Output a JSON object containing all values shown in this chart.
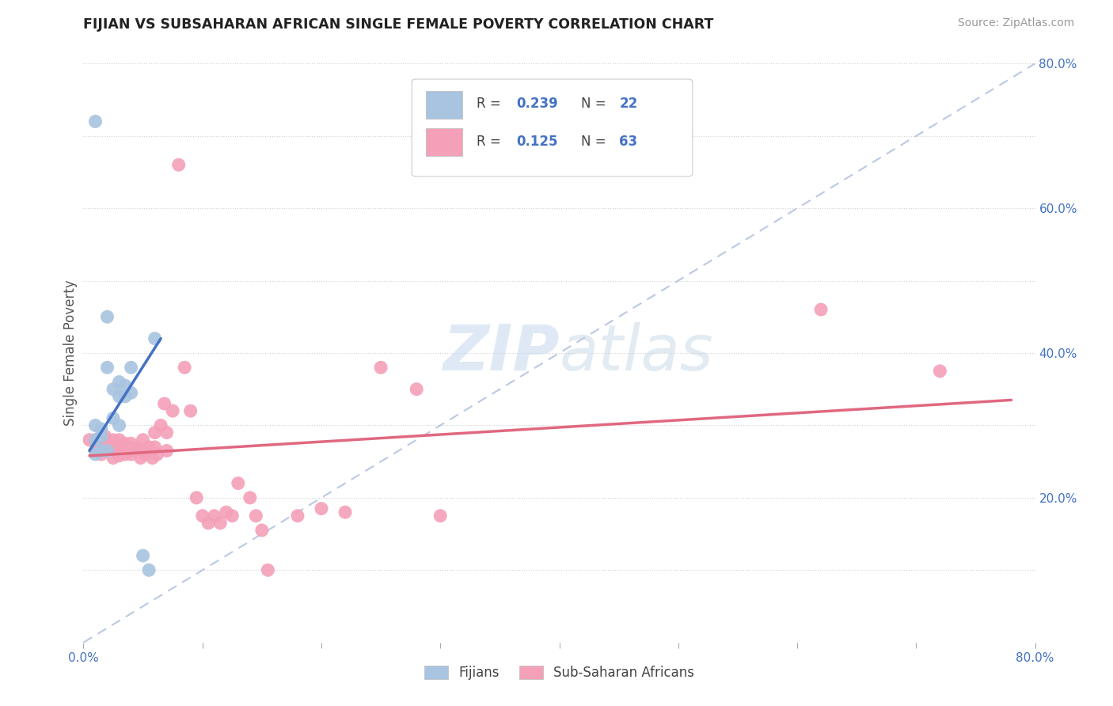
{
  "title": "FIJIAN VS SUBSAHARAN AFRICAN SINGLE FEMALE POVERTY CORRELATION CHART",
  "source": "Source: ZipAtlas.com",
  "ylabel": "Single Female Poverty",
  "xlim": [
    0,
    0.8
  ],
  "ylim": [
    0,
    0.8
  ],
  "grid_color": "#d0d0d0",
  "bg_color": "#ffffff",
  "fijian_color": "#a8c4e0",
  "fijian_line_color": "#4472c4",
  "subsaharan_color": "#f4a0b8",
  "subsaharan_line_color": "#e06880",
  "fijian_R": "0.239",
  "fijian_N": "22",
  "subsaharan_R": "0.125",
  "subsaharan_N": "63",
  "fijian_points_x": [
    0.01,
    0.01,
    0.01,
    0.015,
    0.015,
    0.015,
    0.02,
    0.02,
    0.02,
    0.025,
    0.025,
    0.03,
    0.03,
    0.03,
    0.035,
    0.035,
    0.04,
    0.04,
    0.05,
    0.055,
    0.06,
    0.01
  ],
  "fijian_points_y": [
    0.3,
    0.28,
    0.26,
    0.295,
    0.285,
    0.265,
    0.45,
    0.38,
    0.265,
    0.35,
    0.31,
    0.36,
    0.34,
    0.3,
    0.355,
    0.34,
    0.38,
    0.345,
    0.12,
    0.1,
    0.42,
    0.72
  ],
  "subsaharan_points_x": [
    0.005,
    0.01,
    0.01,
    0.012,
    0.015,
    0.015,
    0.015,
    0.018,
    0.02,
    0.02,
    0.022,
    0.025,
    0.025,
    0.025,
    0.028,
    0.03,
    0.03,
    0.03,
    0.032,
    0.035,
    0.035,
    0.038,
    0.04,
    0.04,
    0.042,
    0.045,
    0.048,
    0.05,
    0.05,
    0.052,
    0.055,
    0.058,
    0.06,
    0.06,
    0.062,
    0.065,
    0.068,
    0.07,
    0.07,
    0.075,
    0.08,
    0.085,
    0.09,
    0.095,
    0.1,
    0.105,
    0.11,
    0.115,
    0.12,
    0.125,
    0.13,
    0.14,
    0.145,
    0.15,
    0.155,
    0.18,
    0.2,
    0.22,
    0.25,
    0.28,
    0.3,
    0.62,
    0.72
  ],
  "subsaharan_points_y": [
    0.28,
    0.28,
    0.265,
    0.275,
    0.28,
    0.27,
    0.26,
    0.285,
    0.28,
    0.265,
    0.275,
    0.28,
    0.265,
    0.255,
    0.275,
    0.28,
    0.268,
    0.258,
    0.27,
    0.275,
    0.26,
    0.27,
    0.275,
    0.26,
    0.265,
    0.27,
    0.255,
    0.28,
    0.265,
    0.26,
    0.27,
    0.255,
    0.29,
    0.27,
    0.26,
    0.3,
    0.33,
    0.29,
    0.265,
    0.32,
    0.66,
    0.38,
    0.32,
    0.2,
    0.175,
    0.165,
    0.175,
    0.165,
    0.18,
    0.175,
    0.22,
    0.2,
    0.175,
    0.155,
    0.1,
    0.175,
    0.185,
    0.18,
    0.38,
    0.35,
    0.175,
    0.46,
    0.375
  ],
  "fijian_trend_x": [
    0.005,
    0.065
  ],
  "fijian_trend_y": [
    0.265,
    0.42
  ],
  "subsaharan_trend_x": [
    0.005,
    0.78
  ],
  "subsaharan_trend_y": [
    0.258,
    0.335
  ],
  "dashed_line_x": [
    0.0,
    0.8
  ],
  "dashed_line_y": [
    0.0,
    0.8
  ]
}
